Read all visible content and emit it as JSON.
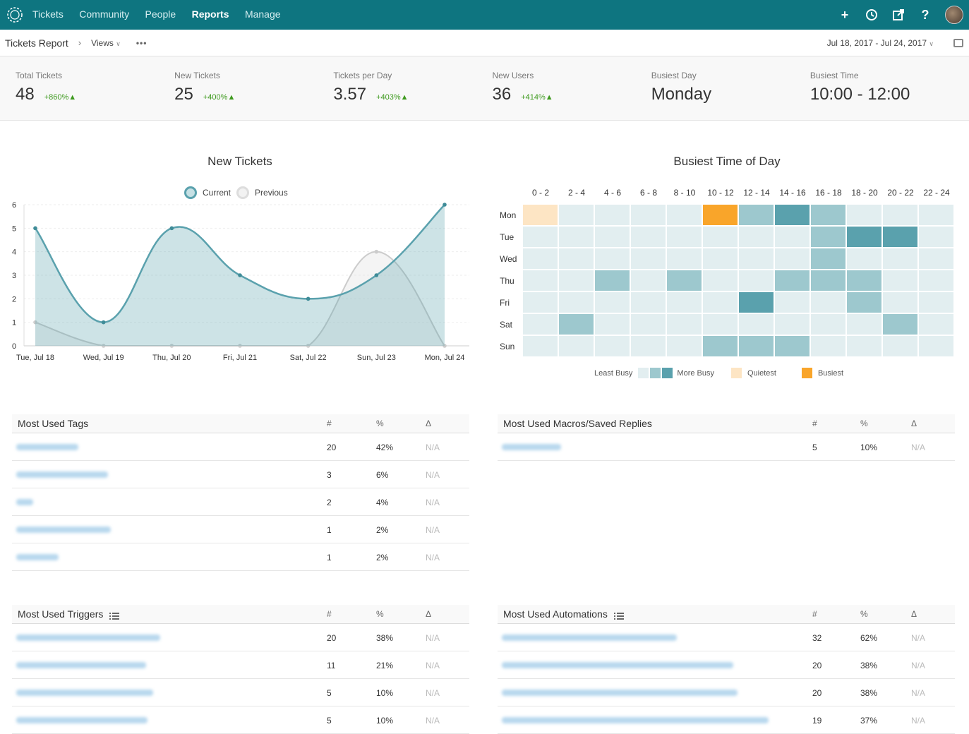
{
  "nav": {
    "items": [
      {
        "label": "Tickets",
        "active": false
      },
      {
        "label": "Community",
        "active": false
      },
      {
        "label": "People",
        "active": false
      },
      {
        "label": "Reports",
        "active": true
      },
      {
        "label": "Manage",
        "active": false
      }
    ],
    "icons": [
      "plus-icon",
      "history-icon",
      "external-link-icon",
      "help-icon"
    ]
  },
  "subbar": {
    "crumb": "Tickets Report",
    "views": "Views",
    "date_range": "Jul 18, 2017 - Jul 24, 2017"
  },
  "stats": [
    {
      "label": "Total Tickets",
      "value": "48",
      "change": "+860%"
    },
    {
      "label": "New Tickets",
      "value": "25",
      "change": "+400%"
    },
    {
      "label": "Tickets per Day",
      "value": "3.57",
      "change": "+403%"
    },
    {
      "label": "New Users",
      "value": "36",
      "change": "+414%"
    },
    {
      "label": "Busiest Day",
      "value": "Monday",
      "change": ""
    },
    {
      "label": "Busiest Time",
      "value": "10:00 - 12:00",
      "change": ""
    }
  ],
  "chart_data": {
    "type": "area",
    "title": "New Tickets",
    "categories": [
      "Tue, Jul 18",
      "Wed, Jul 19",
      "Thu, Jul 20",
      "Fri, Jul 21",
      "Sat, Jul 22",
      "Sun, Jul 23",
      "Mon, Jul 24"
    ],
    "series": [
      {
        "name": "Current",
        "values": [
          5,
          1,
          5,
          3,
          2,
          3,
          6
        ],
        "color": "#5aa1ad"
      },
      {
        "name": "Previous",
        "values": [
          1,
          0,
          0,
          0,
          0,
          4,
          0
        ],
        "color": "#cccccc"
      }
    ],
    "ylim": [
      0,
      6
    ],
    "yticks": [
      "0",
      "1",
      "2",
      "3",
      "4",
      "5",
      "6"
    ],
    "legend": "top"
  },
  "heatmap": {
    "title": "Busiest Time of Day",
    "columns": [
      "0 - 2",
      "2 - 4",
      "4 - 6",
      "6 - 8",
      "8 - 10",
      "10 - 12",
      "12 - 14",
      "14 - 16",
      "16 - 18",
      "18 - 20",
      "20 - 22",
      "22 - 24"
    ],
    "rows": [
      "Mon",
      "Tue",
      "Wed",
      "Thu",
      "Fri",
      "Sat",
      "Sun"
    ],
    "levels": [
      [
        4,
        0,
        0,
        0,
        0,
        5,
        1,
        2,
        1,
        0,
        0,
        0
      ],
      [
        0,
        0,
        0,
        0,
        0,
        0,
        0,
        0,
        1,
        2,
        2,
        0
      ],
      [
        0,
        0,
        0,
        0,
        0,
        0,
        0,
        0,
        1,
        0,
        0,
        0
      ],
      [
        0,
        0,
        1,
        0,
        1,
        0,
        0,
        1,
        1,
        1,
        0,
        0
      ],
      [
        0,
        0,
        0,
        0,
        0,
        0,
        2,
        0,
        0,
        1,
        0,
        0
      ],
      [
        0,
        1,
        0,
        0,
        0,
        0,
        0,
        0,
        0,
        0,
        1,
        0
      ],
      [
        0,
        0,
        0,
        0,
        0,
        1,
        1,
        1,
        0,
        0,
        0,
        0
      ]
    ],
    "colors": {
      "0": "#e2eef0",
      "1": "#9dc8ce",
      "2": "#5aa1ad",
      "4": "#fde5c4",
      "5": "#f9a52a"
    },
    "legend": {
      "least": "Least Busy",
      "more": "More Busy",
      "quietest": "Quietest",
      "busiest": "Busiest"
    }
  },
  "tables": {
    "tags": {
      "title": "Most Used Tags",
      "headers": [
        "#",
        "%",
        "Δ"
      ],
      "rows": [
        {
          "count": "20",
          "pct": "42%",
          "delta": "N/A"
        },
        {
          "count": "3",
          "pct": "6%",
          "delta": "N/A"
        },
        {
          "count": "2",
          "pct": "4%",
          "delta": "N/A"
        },
        {
          "count": "1",
          "pct": "2%",
          "delta": "N/A"
        },
        {
          "count": "1",
          "pct": "2%",
          "delta": "N/A"
        }
      ]
    },
    "macros": {
      "title": "Most Used Macros/Saved Replies",
      "headers": [
        "#",
        "%",
        "Δ"
      ],
      "rows": [
        {
          "count": "5",
          "pct": "10%",
          "delta": "N/A"
        }
      ]
    },
    "triggers": {
      "title": "Most Used Triggers",
      "headers": [
        "#",
        "%",
        "Δ"
      ],
      "rows": [
        {
          "count": "20",
          "pct": "38%",
          "delta": "N/A"
        },
        {
          "count": "11",
          "pct": "21%",
          "delta": "N/A"
        },
        {
          "count": "5",
          "pct": "10%",
          "delta": "N/A"
        },
        {
          "count": "5",
          "pct": "10%",
          "delta": "N/A"
        }
      ]
    },
    "automations": {
      "title": "Most Used Automations",
      "headers": [
        "#",
        "%",
        "Δ"
      ],
      "rows": [
        {
          "count": "32",
          "pct": "62%",
          "delta": "N/A"
        },
        {
          "count": "20",
          "pct": "38%",
          "delta": "N/A"
        },
        {
          "count": "20",
          "pct": "38%",
          "delta": "N/A"
        },
        {
          "count": "19",
          "pct": "37%",
          "delta": "N/A"
        }
      ]
    }
  }
}
